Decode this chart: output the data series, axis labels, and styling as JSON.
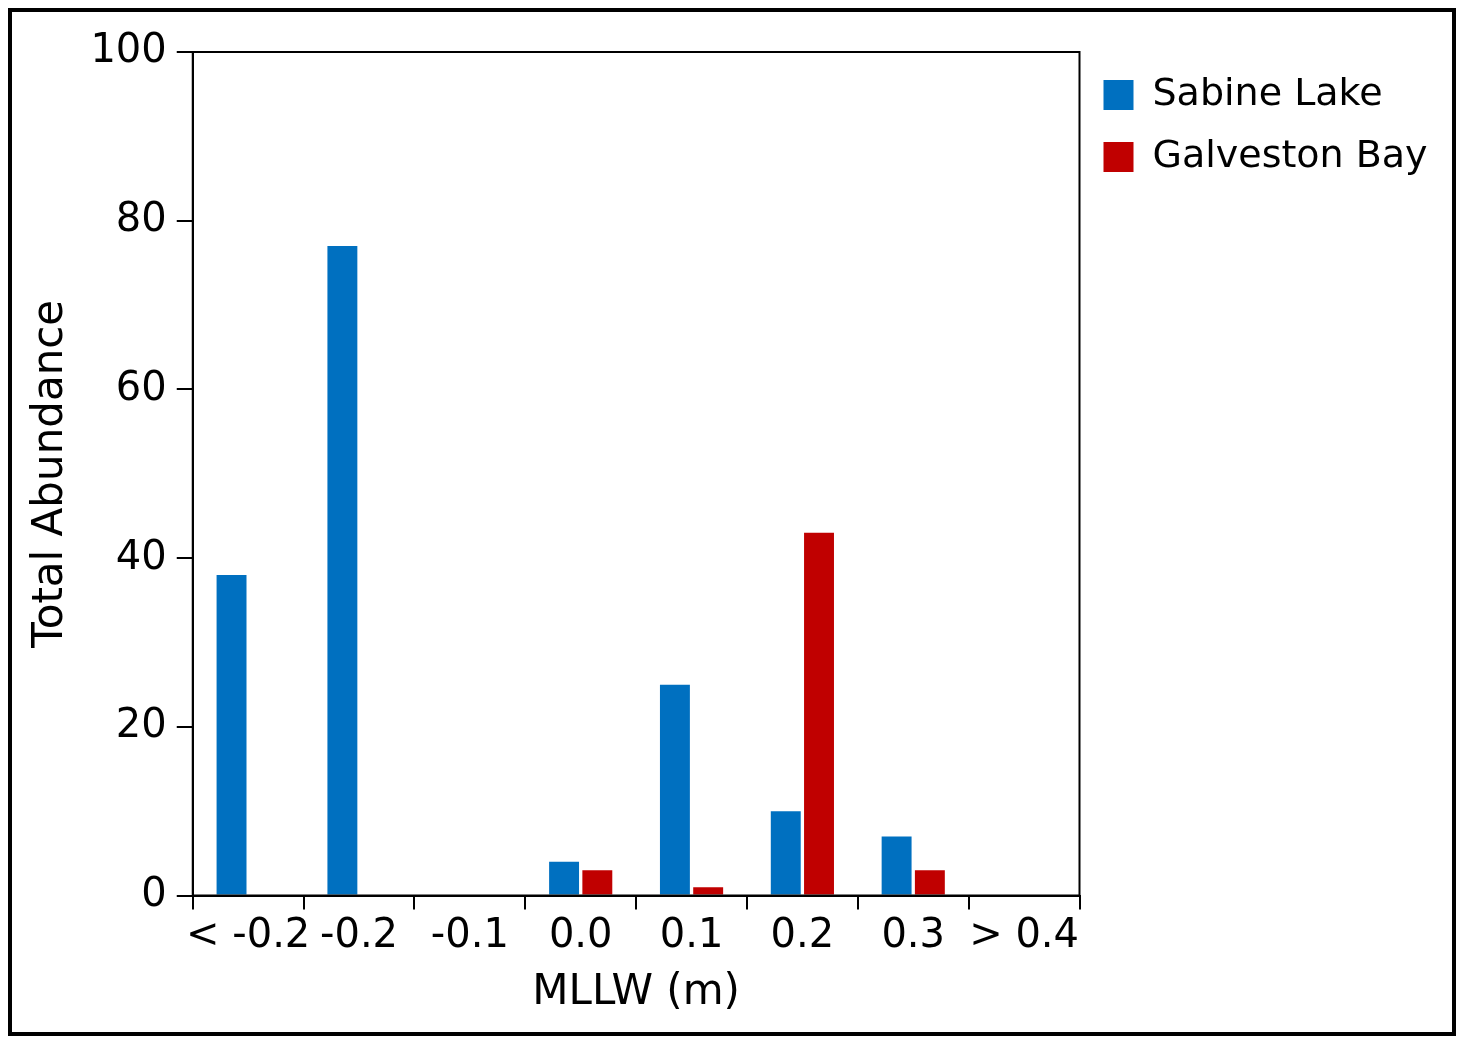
{
  "chart_data": {
    "type": "bar",
    "xlabel": "MLLW (m)",
    "ylabel": "Total Abundance",
    "categories": [
      "< -0.2",
      "-0.2",
      "-0.1",
      "0.0",
      "0.1",
      "0.2",
      "0.3",
      "> 0.4"
    ],
    "series": [
      {
        "name": "Sabine Lake",
        "color": "#0070c0",
        "values": [
          38,
          77,
          0,
          4,
          25,
          10,
          7,
          0
        ]
      },
      {
        "name": "Galveston Bay",
        "color": "#c00000",
        "values": [
          0,
          0,
          0,
          3,
          1,
          43,
          3,
          0
        ]
      }
    ],
    "ylim": [
      0,
      100
    ],
    "yticks": [
      0,
      20,
      40,
      60,
      80,
      100
    ],
    "grid": false,
    "legend": "top right"
  }
}
